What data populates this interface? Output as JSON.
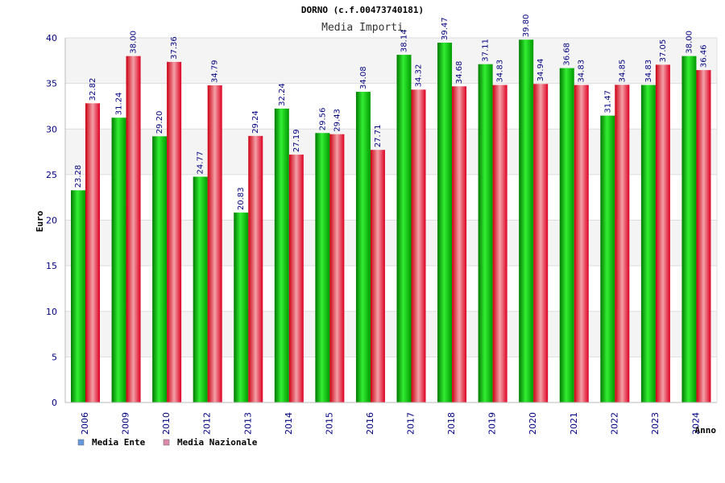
{
  "chart_data": {
    "type": "bar",
    "title": "DORNO (c.f.00473740181)",
    "subtitle": "Media Importi",
    "xlabel": "Anno",
    "ylabel": "Euro",
    "ylim": [
      0,
      40
    ],
    "yticks": [
      0,
      5,
      10,
      15,
      20,
      25,
      30,
      35,
      40
    ],
    "grid": true,
    "legend_position": "bottom-left",
    "categories": [
      "2006",
      "2009",
      "2010",
      "2012",
      "2013",
      "2014",
      "2015",
      "2016",
      "2017",
      "2018",
      "2019",
      "2020",
      "2021",
      "2022",
      "2023",
      "2024"
    ],
    "series": [
      {
        "name": "Media Ente",
        "color": "#00cc00",
        "legend_color": "#6699dd",
        "values": [
          23.28,
          31.24,
          29.2,
          24.77,
          20.83,
          32.24,
          29.56,
          34.08,
          38.14,
          39.47,
          37.11,
          39.8,
          36.68,
          31.47,
          34.83,
          38.0
        ],
        "labels": [
          "23.28",
          "31.24",
          "29.20",
          "24.77",
          "20.83",
          "32.24",
          "29.56",
          "34.08",
          "38.14",
          "39.47",
          "37.11",
          "39.80",
          "36.68",
          "31.47",
          "34.83",
          "38.00"
        ]
      },
      {
        "name": "Media Nazionale",
        "color": "#ee2233",
        "legend_color": "#dd88aa",
        "values": [
          32.82,
          38.0,
          37.36,
          34.79,
          29.24,
          27.19,
          29.43,
          27.71,
          34.32,
          34.68,
          34.83,
          34.94,
          34.83,
          34.85,
          37.05,
          36.46
        ],
        "labels": [
          "32.82",
          "38.00",
          "37.36",
          "34.79",
          "29.24",
          "27.19",
          "29.43",
          "27.71",
          "34.32",
          "34.68",
          "34.83",
          "34.94",
          "34.83",
          "34.85",
          "37.05",
          "36.46"
        ]
      }
    ]
  }
}
